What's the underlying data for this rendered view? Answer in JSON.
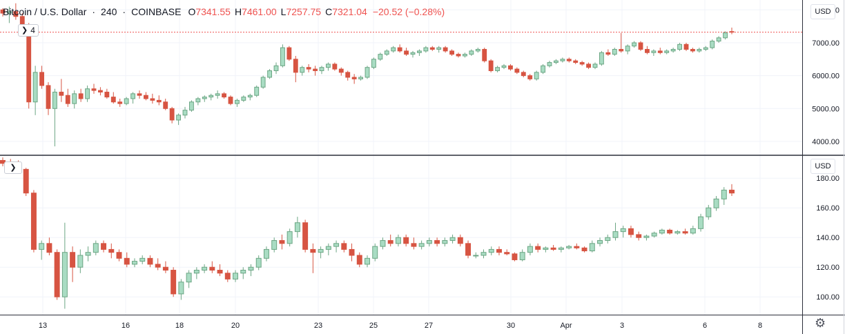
{
  "legend": {
    "symbol": "Bitcoin / U.S. Dollar",
    "interval": "240",
    "exchange": "COINBASE",
    "open_key": "O",
    "open": "7341.55",
    "high_key": "H",
    "high": "7461.00",
    "low_key": "L",
    "low": "7257.75",
    "close_key": "C",
    "close": "7321.04",
    "change": "−20.52 (−0.28%)"
  },
  "top_pane": {
    "collapse_count": "4",
    "currency": "USD",
    "price_labels": [
      "8000.00",
      "7000.00",
      "6000.00",
      "5000.00",
      "4000.00"
    ]
  },
  "bottom_pane": {
    "currency": "USD",
    "price_labels": [
      "180.00",
      "160.00",
      "140.00",
      "120.00",
      "100.00"
    ]
  },
  "time_axis": {
    "labels": [
      "13",
      "16",
      "18",
      "20",
      "23",
      "25",
      "27",
      "30",
      "Apr",
      "3",
      "6",
      "8"
    ]
  },
  "colors": {
    "up": "#6ba583",
    "down": "#d75442",
    "up_fill": "#a9dcc3",
    "grid": "#f0f3fa",
    "axis_text": "#131722",
    "last_price_line": "#ef5350"
  },
  "icons": {
    "collapse": "chevron-right-icon",
    "settings": "gear-icon"
  },
  "chart_data": [
    {
      "type": "candlestick",
      "title": "Bitcoin / U.S. Dollar · 240 · COINBASE",
      "ylabel": "USD",
      "ylim": [
        3600,
        8300
      ],
      "x_tick_labels": [
        "13",
        "16",
        "18",
        "20",
        "23",
        "25",
        "27",
        "30",
        "Apr",
        "3",
        "6",
        "8"
      ],
      "last_price": 7321.04,
      "ohlc": [
        [
          8000,
          8050,
          7800,
          7900
        ],
        [
          7900,
          8100,
          7600,
          7950
        ],
        [
          7950,
          8200,
          7700,
          7800
        ],
        [
          7800,
          7900,
          7400,
          7500
        ],
        [
          7500,
          7600,
          5000,
          5200
        ],
        [
          5200,
          6300,
          4800,
          6100
        ],
        [
          6100,
          6300,
          5600,
          5700
        ],
        [
          5700,
          5800,
          4800,
          5000
        ],
        [
          5000,
          5600,
          3850,
          5500
        ],
        [
          5500,
          5900,
          5200,
          5400
        ],
        [
          5400,
          5600,
          5050,
          5150
        ],
        [
          5150,
          5550,
          5000,
          5450
        ],
        [
          5450,
          5600,
          5200,
          5300
        ],
        [
          5300,
          5700,
          5200,
          5600
        ],
        [
          5600,
          5750,
          5450,
          5550
        ],
        [
          5550,
          5650,
          5400,
          5500
        ],
        [
          5500,
          5600,
          5300,
          5350
        ],
        [
          5350,
          5500,
          5150,
          5200
        ],
        [
          5200,
          5300,
          5050,
          5150
        ],
        [
          5150,
          5350,
          5100,
          5300
        ],
        [
          5300,
          5500,
          5150,
          5450
        ],
        [
          5450,
          5550,
          5300,
          5400
        ],
        [
          5400,
          5500,
          5250,
          5300
        ],
        [
          5300,
          5450,
          5150,
          5250
        ],
        [
          5250,
          5400,
          5100,
          5200
        ],
        [
          5200,
          5300,
          4950,
          5000
        ],
        [
          5000,
          5050,
          4550,
          4650
        ],
        [
          4650,
          4850,
          4500,
          4800
        ],
        [
          4800,
          5050,
          4700,
          4950
        ],
        [
          4950,
          5250,
          4900,
          5200
        ],
        [
          5200,
          5350,
          5100,
          5300
        ],
        [
          5300,
          5400,
          5200,
          5350
        ],
        [
          5350,
          5450,
          5250,
          5400
        ],
        [
          5400,
          5550,
          5300,
          5450
        ],
        [
          5450,
          5500,
          5300,
          5350
        ],
        [
          5350,
          5400,
          5100,
          5150
        ],
        [
          5150,
          5300,
          5050,
          5250
        ],
        [
          5250,
          5400,
          5200,
          5350
        ],
        [
          5350,
          5450,
          5250,
          5400
        ],
        [
          5400,
          5700,
          5350,
          5650
        ],
        [
          5650,
          6000,
          5600,
          5950
        ],
        [
          5950,
          6200,
          5900,
          6150
        ],
        [
          6150,
          6400,
          6050,
          6300
        ],
        [
          6300,
          6950,
          6250,
          6850
        ],
        [
          6850,
          6900,
          6450,
          6500
        ],
        [
          6500,
          6600,
          5800,
          6100
        ],
        [
          6100,
          6300,
          6000,
          6250
        ],
        [
          6250,
          6350,
          6100,
          6200
        ],
        [
          6200,
          6300,
          6000,
          6150
        ],
        [
          6150,
          6300,
          6050,
          6250
        ],
        [
          6250,
          6400,
          6150,
          6350
        ],
        [
          6350,
          6400,
          6150,
          6200
        ],
        [
          6200,
          6250,
          6000,
          6100
        ],
        [
          6100,
          6150,
          5850,
          5950
        ],
        [
          5950,
          6050,
          5750,
          5900
        ],
        [
          5900,
          6000,
          5850,
          5950
        ],
        [
          5950,
          6300,
          5900,
          6250
        ],
        [
          6250,
          6550,
          6200,
          6500
        ],
        [
          6500,
          6700,
          6450,
          6650
        ],
        [
          6650,
          6800,
          6600,
          6750
        ],
        [
          6750,
          6900,
          6700,
          6850
        ],
        [
          6850,
          6950,
          6700,
          6750
        ],
        [
          6750,
          6850,
          6600,
          6650
        ],
        [
          6650,
          6750,
          6550,
          6700
        ],
        [
          6700,
          6800,
          6600,
          6750
        ],
        [
          6750,
          6900,
          6700,
          6850
        ],
        [
          6850,
          6900,
          6750,
          6800
        ],
        [
          6800,
          6900,
          6700,
          6850
        ],
        [
          6850,
          6900,
          6700,
          6750
        ],
        [
          6750,
          6800,
          6600,
          6650
        ],
        [
          6650,
          6700,
          6550,
          6600
        ],
        [
          6600,
          6700,
          6550,
          6650
        ],
        [
          6650,
          6800,
          6600,
          6750
        ],
        [
          6750,
          6850,
          6700,
          6800
        ],
        [
          6800,
          6850,
          6400,
          6450
        ],
        [
          6450,
          6500,
          6100,
          6150
        ],
        [
          6150,
          6300,
          6100,
          6250
        ],
        [
          6250,
          6350,
          6200,
          6300
        ],
        [
          6300,
          6350,
          6150,
          6200
        ],
        [
          6200,
          6250,
          6050,
          6100
        ],
        [
          6100,
          6150,
          5950,
          6000
        ],
        [
          6000,
          6050,
          5850,
          5900
        ],
        [
          5900,
          6150,
          5850,
          6100
        ],
        [
          6100,
          6350,
          6050,
          6300
        ],
        [
          6300,
          6450,
          6250,
          6400
        ],
        [
          6400,
          6500,
          6350,
          6450
        ],
        [
          6450,
          6550,
          6400,
          6500
        ],
        [
          6500,
          6550,
          6400,
          6450
        ],
        [
          6450,
          6500,
          6350,
          6400
        ],
        [
          6400,
          6450,
          6300,
          6350
        ],
        [
          6350,
          6400,
          6200,
          6250
        ],
        [
          6250,
          6400,
          6200,
          6350
        ],
        [
          6350,
          6750,
          6300,
          6700
        ],
        [
          6700,
          6800,
          6600,
          6650
        ],
        [
          6650,
          6850,
          6600,
          6800
        ],
        [
          6800,
          7300,
          6700,
          6750
        ],
        [
          6750,
          6950,
          6650,
          6900
        ],
        [
          6900,
          7050,
          6850,
          7000
        ],
        [
          7000,
          7050,
          6750,
          6800
        ],
        [
          6800,
          6900,
          6650,
          6700
        ],
        [
          6700,
          6800,
          6600,
          6750
        ],
        [
          6750,
          6850,
          6650,
          6700
        ],
        [
          6700,
          6800,
          6650,
          6750
        ],
        [
          6750,
          6850,
          6700,
          6800
        ],
        [
          6800,
          7000,
          6750,
          6950
        ],
        [
          6950,
          7000,
          6750,
          6800
        ],
        [
          6800,
          6850,
          6700,
          6750
        ],
        [
          6750,
          6850,
          6700,
          6800
        ],
        [
          6800,
          6900,
          6750,
          6850
        ],
        [
          6850,
          7100,
          6800,
          7050
        ],
        [
          7050,
          7200,
          7000,
          7150
        ],
        [
          7150,
          7350,
          7100,
          7300
        ],
        [
          7341.55,
          7461,
          7257.75,
          7321.04
        ]
      ]
    },
    {
      "type": "candlestick",
      "ylabel": "USD",
      "ylim": [
        88,
        195
      ],
      "x_tick_labels": [
        "13",
        "16",
        "18",
        "20",
        "23",
        "25",
        "27",
        "30",
        "Apr",
        "3",
        "6",
        "8"
      ],
      "ohlc": [
        [
          192,
          194,
          188,
          190
        ],
        [
          190,
          193,
          187,
          188
        ],
        [
          188,
          192,
          184,
          186
        ],
        [
          186,
          187,
          168,
          170
        ],
        [
          170,
          172,
          130,
          132
        ],
        [
          132,
          138,
          125,
          136
        ],
        [
          136,
          140,
          128,
          130
        ],
        [
          130,
          132,
          98,
          100
        ],
        [
          100,
          150,
          92,
          130
        ],
        [
          130,
          134,
          110,
          120
        ],
        [
          120,
          132,
          116,
          128
        ],
        [
          128,
          134,
          124,
          130
        ],
        [
          130,
          138,
          128,
          136
        ],
        [
          136,
          138,
          130,
          132
        ],
        [
          132,
          136,
          126,
          130
        ],
        [
          130,
          132,
          124,
          126
        ],
        [
          126,
          130,
          120,
          122
        ],
        [
          122,
          126,
          120,
          124
        ],
        [
          124,
          128,
          122,
          126
        ],
        [
          126,
          128,
          120,
          122
        ],
        [
          122,
          126,
          118,
          120
        ],
        [
          120,
          124,
          116,
          118
        ],
        [
          118,
          120,
          100,
          102
        ],
        [
          102,
          112,
          98,
          110
        ],
        [
          110,
          118,
          106,
          116
        ],
        [
          116,
          120,
          112,
          118
        ],
        [
          118,
          122,
          116,
          120
        ],
        [
          120,
          124,
          116,
          118
        ],
        [
          118,
          122,
          114,
          116
        ],
        [
          116,
          118,
          110,
          112
        ],
        [
          112,
          118,
          110,
          116
        ],
        [
          116,
          120,
          112,
          118
        ],
        [
          118,
          122,
          114,
          120
        ],
        [
          120,
          128,
          118,
          126
        ],
        [
          126,
          134,
          124,
          132
        ],
        [
          132,
          140,
          130,
          138
        ],
        [
          138,
          142,
          132,
          136
        ],
        [
          136,
          146,
          134,
          144
        ],
        [
          144,
          154,
          140,
          150
        ],
        [
          150,
          152,
          130,
          132
        ],
        [
          132,
          136,
          116,
          130
        ],
        [
          130,
          134,
          126,
          132
        ],
        [
          132,
          136,
          128,
          134
        ],
        [
          134,
          138,
          130,
          136
        ],
        [
          136,
          138,
          130,
          132
        ],
        [
          132,
          136,
          124,
          128
        ],
        [
          128,
          130,
          120,
          122
        ],
        [
          122,
          128,
          120,
          126
        ],
        [
          126,
          136,
          124,
          134
        ],
        [
          134,
          140,
          132,
          138
        ],
        [
          138,
          142,
          134,
          136
        ],
        [
          136,
          142,
          134,
          140
        ],
        [
          140,
          142,
          134,
          136
        ],
        [
          136,
          140,
          132,
          134
        ],
        [
          134,
          138,
          132,
          136
        ],
        [
          136,
          140,
          134,
          138
        ],
        [
          138,
          140,
          134,
          136
        ],
        [
          136,
          140,
          134,
          138
        ],
        [
          138,
          142,
          136,
          140
        ],
        [
          140,
          142,
          134,
          136
        ],
        [
          136,
          138,
          126,
          128
        ],
        [
          128,
          130,
          126,
          128
        ],
        [
          128,
          132,
          126,
          130
        ],
        [
          130,
          134,
          128,
          132
        ],
        [
          132,
          134,
          128,
          130
        ],
        [
          130,
          132,
          128,
          129
        ],
        [
          129,
          130,
          124,
          125
        ],
        [
          125,
          132,
          124,
          130
        ],
        [
          130,
          136,
          128,
          134
        ],
        [
          134,
          136,
          130,
          132
        ],
        [
          132,
          134,
          130,
          133
        ],
        [
          133,
          135,
          131,
          132
        ],
        [
          132,
          134,
          130,
          133
        ],
        [
          133,
          135,
          132,
          134
        ],
        [
          134,
          136,
          132,
          133
        ],
        [
          133,
          134,
          130,
          131
        ],
        [
          131,
          138,
          130,
          136
        ],
        [
          136,
          140,
          134,
          138
        ],
        [
          138,
          142,
          136,
          140
        ],
        [
          140,
          150,
          138,
          144
        ],
        [
          144,
          148,
          140,
          146
        ],
        [
          146,
          148,
          140,
          142
        ],
        [
          142,
          144,
          138,
          140
        ],
        [
          140,
          142,
          138,
          141
        ],
        [
          141,
          144,
          140,
          143
        ],
        [
          143,
          146,
          142,
          145
        ],
        [
          145,
          146,
          142,
          143
        ],
        [
          143,
          145,
          142,
          144
        ],
        [
          144,
          146,
          142,
          143
        ],
        [
          143,
          148,
          142,
          146
        ],
        [
          146,
          156,
          144,
          154
        ],
        [
          154,
          162,
          152,
          160
        ],
        [
          160,
          168,
          158,
          166
        ],
        [
          166,
          174,
          162,
          172
        ],
        [
          172,
          176,
          168,
          170
        ]
      ]
    }
  ]
}
